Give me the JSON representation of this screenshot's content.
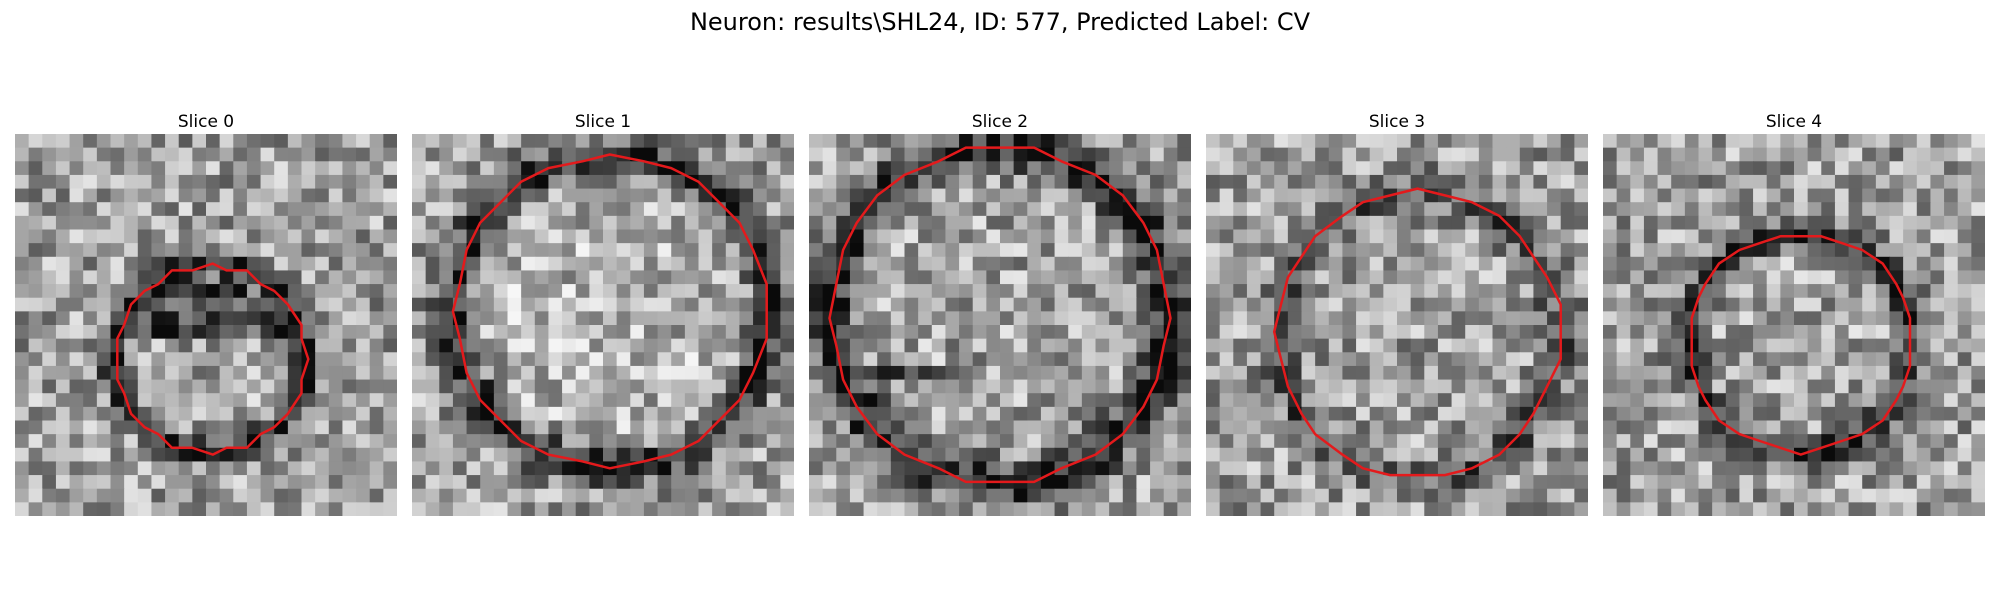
{
  "figure": {
    "title": "Neuron: results\\SHL24, ID: 577, Predicted Label: CV"
  },
  "panels": [
    {
      "title": "Slice 0"
    },
    {
      "title": "Slice 1"
    },
    {
      "title": "Slice 2"
    },
    {
      "title": "Slice 3"
    },
    {
      "title": "Slice 4"
    }
  ],
  "colors": {
    "contour": "#e41a1c",
    "background": "#ffffff"
  }
}
